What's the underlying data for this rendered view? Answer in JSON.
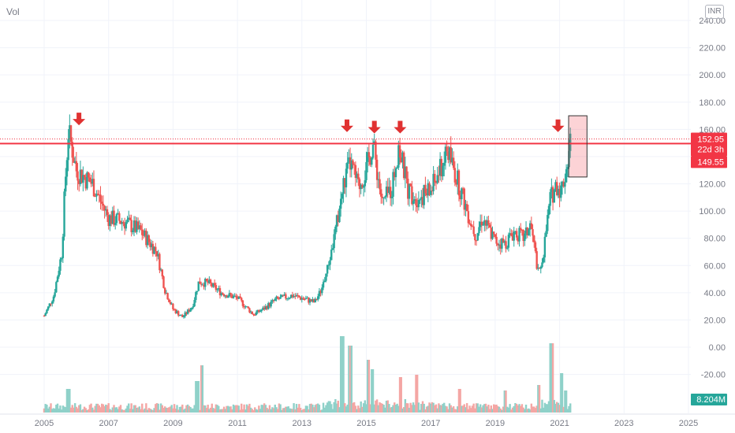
{
  "header": {
    "vol_label": "Vol",
    "currency": "INR"
  },
  "colors": {
    "up": "#26a69a",
    "down": "#ef5350",
    "up_vol": "#8fd1c9",
    "down_vol": "#f4a6a4",
    "resistance": "#f23645",
    "marker": "#e03131",
    "grid": "#f0f3fa",
    "text": "#787b86",
    "vol_badge": "#26a69a"
  },
  "chart_data": {
    "type": "candlestick",
    "x_range": [
      2005.0,
      2025.6
    ],
    "y_range": [
      -50,
      240
    ],
    "xticks": [
      "2005",
      "2007",
      "2009",
      "2011",
      "2013",
      "2015",
      "2017",
      "2019",
      "2021",
      "2023",
      "2025"
    ],
    "yticks": [
      "240.00",
      "220.00",
      "200.00",
      "180.00",
      "160.00",
      "140.00",
      "120.00",
      "100.00",
      "80.00",
      "60.00",
      "40.00",
      "20.00",
      "0.00",
      "-20.00"
    ],
    "last_price": "152.95",
    "countdown": "22d 3h",
    "resistance_price": "149.55",
    "resistance_level": 149.55,
    "volume_value": "8.204M",
    "markers": [
      {
        "t": 2006.08,
        "price": 163
      },
      {
        "t": 2014.4,
        "price": 158
      },
      {
        "t": 2015.25,
        "price": 157
      },
      {
        "t": 2016.05,
        "price": 157
      },
      {
        "t": 2020.95,
        "price": 158
      }
    ],
    "highlight_box": {
      "t0": 2021.28,
      "t1": 2021.85,
      "p0": 125,
      "p1": 170
    },
    "anchors": [
      [
        2005.0,
        23
      ],
      [
        2005.3,
        38
      ],
      [
        2005.55,
        70
      ],
      [
        2005.65,
        120
      ],
      [
        2005.75,
        158
      ],
      [
        2005.85,
        148
      ],
      [
        2006.0,
        130
      ],
      [
        2006.5,
        120
      ],
      [
        2007.0,
        95
      ],
      [
        2007.5,
        92
      ],
      [
        2008.0,
        85
      ],
      [
        2008.5,
        70
      ],
      [
        2008.75,
        42
      ],
      [
        2009.0,
        28
      ],
      [
        2009.3,
        22
      ],
      [
        2009.6,
        30
      ],
      [
        2009.8,
        48
      ],
      [
        2010.1,
        47
      ],
      [
        2010.5,
        40
      ],
      [
        2011.0,
        36
      ],
      [
        2011.5,
        24
      ],
      [
        2011.8,
        28
      ],
      [
        2012.2,
        35
      ],
      [
        2012.7,
        38
      ],
      [
        2013.0,
        36
      ],
      [
        2013.4,
        33
      ],
      [
        2013.6,
        42
      ],
      [
        2013.8,
        58
      ],
      [
        2014.0,
        80
      ],
      [
        2014.3,
        120
      ],
      [
        2014.5,
        135
      ],
      [
        2014.75,
        118
      ],
      [
        2015.0,
        130
      ],
      [
        2015.2,
        150
      ],
      [
        2015.5,
        105
      ],
      [
        2015.8,
        118
      ],
      [
        2016.0,
        148
      ],
      [
        2016.3,
        115
      ],
      [
        2016.6,
        110
      ],
      [
        2017.0,
        115
      ],
      [
        2017.3,
        130
      ],
      [
        2017.5,
        145
      ],
      [
        2017.8,
        125
      ],
      [
        2018.0,
        110
      ],
      [
        2018.2,
        95
      ],
      [
        2018.4,
        82
      ],
      [
        2018.6,
        95
      ],
      [
        2019.0,
        78
      ],
      [
        2019.3,
        76
      ],
      [
        2019.6,
        85
      ],
      [
        2019.9,
        80
      ],
      [
        2020.1,
        90
      ],
      [
        2020.25,
        68
      ],
      [
        2020.35,
        52
      ],
      [
        2020.5,
        70
      ],
      [
        2020.7,
        108
      ],
      [
        2020.9,
        120
      ],
      [
        2021.05,
        115
      ],
      [
        2021.2,
        130
      ],
      [
        2021.35,
        153
      ]
    ],
    "volume_spikes": [
      {
        "t": 2005.75,
        "v": 0.3
      },
      {
        "t": 2009.9,
        "v": 0.6
      },
      {
        "t": 2009.75,
        "v": 0.4
      },
      {
        "t": 2014.25,
        "v": 0.97
      },
      {
        "t": 2014.5,
        "v": 0.85
      },
      {
        "t": 2015.05,
        "v": 0.67
      },
      {
        "t": 2015.2,
        "v": 0.55
      },
      {
        "t": 2016.05,
        "v": 0.45
      },
      {
        "t": 2016.55,
        "v": 0.48
      },
      {
        "t": 2017.9,
        "v": 0.3
      },
      {
        "t": 2019.3,
        "v": 0.28
      },
      {
        "t": 2020.35,
        "v": 0.35
      },
      {
        "t": 2020.75,
        "v": 0.88
      },
      {
        "t": 2021.05,
        "v": 0.5
      },
      {
        "t": 2021.2,
        "v": 0.28
      }
    ]
  }
}
